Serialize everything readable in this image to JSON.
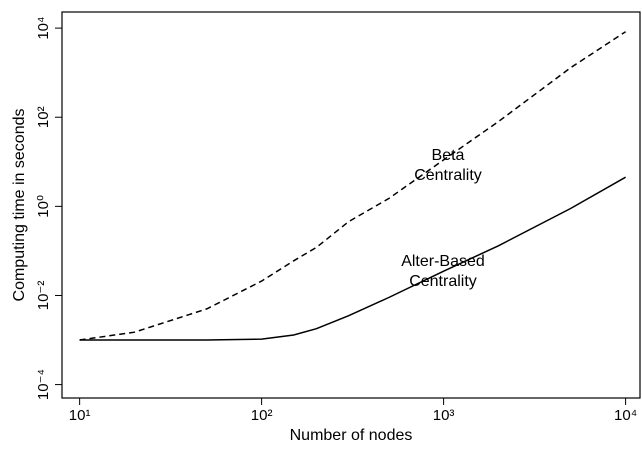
{
  "chart_data": {
    "type": "line",
    "xlabel": "Number of nodes",
    "ylabel": "Computing time in seconds",
    "x": [
      10,
      20,
      50,
      100,
      150,
      200,
      300,
      500,
      1000,
      2000,
      5000,
      10000
    ],
    "series": [
      {
        "name": "Alter-Based Centrality",
        "color": "#000000",
        "linestyle": "solid",
        "values": [
          0.001,
          0.001,
          0.001,
          0.00105,
          0.0013,
          0.0018,
          0.0035,
          0.009,
          0.035,
          0.13,
          0.9,
          4.5
        ]
      },
      {
        "name": "Beta Centrality",
        "color": "#000000",
        "linestyle": "dashed",
        "values": [
          0.001,
          0.0015,
          0.005,
          0.021,
          0.06,
          0.12,
          0.45,
          1.5,
          11,
          80,
          1300,
          8300
        ]
      }
    ],
    "annotations": [
      [
        "Beta",
        "Centrality"
      ],
      [
        "Alter-Based",
        "Centrality"
      ]
    ],
    "xscale": "log",
    "yscale": "log",
    "xlim": [
      8,
      12000
    ],
    "ylim": [
      5e-05,
      23000
    ],
    "xticks": [
      {
        "value": 10,
        "label": "10¹"
      },
      {
        "value": 100,
        "label": "10²"
      },
      {
        "value": 1000,
        "label": "10³"
      },
      {
        "value": 10000,
        "label": "10⁴"
      }
    ],
    "yticks": [
      {
        "value": 0.0001,
        "label": "10⁻⁴"
      },
      {
        "value": 0.01,
        "label": "10⁻²"
      },
      {
        "value": 1,
        "label": "10⁰"
      },
      {
        "value": 100,
        "label": "10²"
      },
      {
        "value": 10000,
        "label": "10⁴"
      }
    ]
  }
}
